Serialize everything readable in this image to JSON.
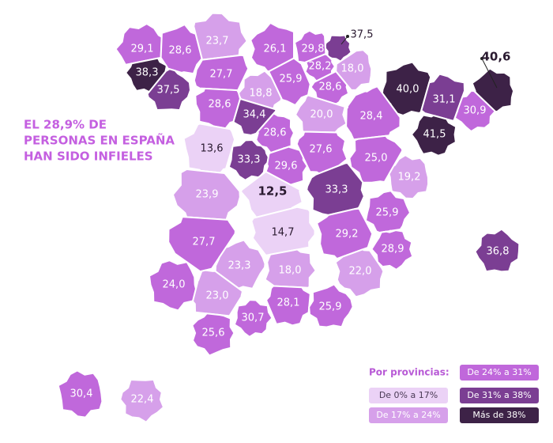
{
  "annotation": {
    "lines": [
      "EL 28,9% DE",
      "PERSONAS EN ESPAÑA",
      "HAN SIDO INFIELES"
    ]
  },
  "legend": {
    "title": "Por provincias:",
    "bins": [
      {
        "label": "De 0% a 17%",
        "from": 0,
        "color": "#ebd2f6"
      },
      {
        "label": "De 17% a 24%",
        "from": 17,
        "color": "#d6a0ea"
      },
      {
        "label": "De 24% a 31%",
        "from": 24,
        "color": "#c068db"
      },
      {
        "label": "De 31% a 38%",
        "from": 31,
        "color": "#7b3e93"
      },
      {
        "label": "Más de 38%",
        "from": 38,
        "color": "#3d2247"
      }
    ]
  },
  "provinces": {
    "values": [
      29.1,
      28.6,
      23.7,
      26.1,
      29.8,
      37.5,
      38.3,
      37.5,
      27.7,
      28.2,
      18.0,
      25.9,
      28.6,
      18.8,
      40.0,
      31.1,
      40.6,
      28.6,
      20.0,
      28.4,
      34.4,
      30.9,
      28.6,
      13.6,
      27.6,
      41.5,
      25.0,
      33.3,
      29.6,
      19.2,
      33.3,
      12.5,
      23.9,
      25.9,
      14.7,
      29.2,
      27.7,
      28.9,
      36.8,
      23.3,
      18.0,
      22.0,
      24.0,
      23.0,
      28.1,
      25.9,
      30.7,
      25.6,
      30.4,
      22.4
    ],
    "value_labels": [
      "29,1",
      "28,6",
      "23,7",
      "26,1",
      "29,8",
      "37,5",
      "38,3",
      "37,5",
      "27,7",
      "28,2",
      "18,0",
      "25,9",
      "28,6",
      "18,8",
      "40,0",
      "31,1",
      "40,6",
      "28,6",
      "20,0",
      "28,4",
      "34,4",
      "30,9",
      "28,6",
      "13,6",
      "27,6",
      "41,5",
      "25,0",
      "33,3",
      "29,6",
      "19,2",
      "33,3",
      "12,5",
      "23,9",
      "25,9",
      "14,7",
      "29,2",
      "27,7",
      "28,9",
      "36,8",
      "23,3",
      "18,0",
      "22,0",
      "24,0",
      "23,0",
      "28,1",
      "25,9",
      "30,7",
      "25,6",
      "30,4",
      "22,4"
    ]
  }
}
